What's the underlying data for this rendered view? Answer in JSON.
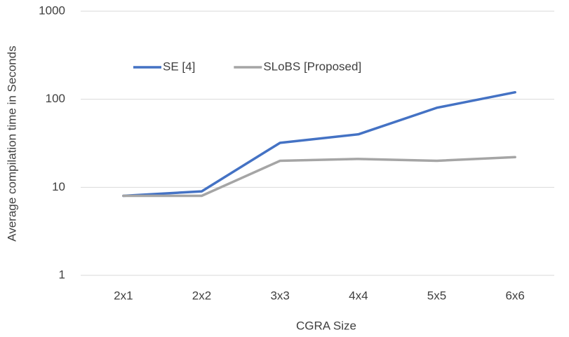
{
  "chart_data": {
    "type": "line",
    "x_label": "CGRA Size",
    "y_label": "Average compilation time in Seconds",
    "categories": [
      "2x1",
      "2x2",
      "3x3",
      "4x4",
      "5x5",
      "6x6"
    ],
    "series": [
      {
        "name": "SE [4]",
        "color": "#4472c4",
        "values": [
          8,
          9,
          32,
          40,
          80,
          120
        ]
      },
      {
        "name": "SLoBS [Proposed]",
        "color": "#a5a5a5",
        "values": [
          8,
          8,
          20,
          21,
          20,
          22
        ]
      }
    ],
    "ylim": [
      1,
      1000
    ],
    "yticks": [
      1,
      10,
      100,
      1000
    ],
    "log_y": true,
    "grid": true,
    "legend": "top"
  }
}
